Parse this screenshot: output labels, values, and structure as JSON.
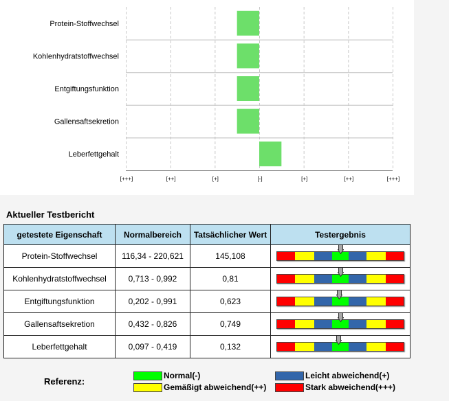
{
  "chart_data": {
    "type": "bar",
    "orientation": "horizontal",
    "categories": [
      "Protein-Stoffwechsel",
      "Kohlenhydratstoffwechsel",
      "Entgiftungsfunktion",
      "Gallensaftsekretion",
      "Leberfettgehalt"
    ],
    "values": [
      -0.5,
      -0.5,
      -0.5,
      -0.5,
      0.5
    ],
    "xlim": [
      -3,
      3
    ],
    "tick_labels": [
      "[+++]",
      "[++]",
      "[+]",
      "[-]",
      "[+]",
      "[++]",
      "[+++]"
    ],
    "bar_color": "#6ddf6a",
    "grid": true
  },
  "report": {
    "title": "Aktueller Testbericht",
    "headers": [
      "getestete Eigenschaft",
      "Normalbereich",
      "Tatsächlicher Wert",
      "Testergebnis"
    ],
    "rows": [
      {
        "name": "Protein-Stoffwechsel",
        "range": "116,34 - 220,621",
        "value": "145,108",
        "marker": 0.505
      },
      {
        "name": "Kohlenhydratstoffwechsel",
        "range": "0,713 - 0,992",
        "value": "0,81",
        "marker": 0.505
      },
      {
        "name": "Entgiftungsfunktion",
        "range": "0,202 - 0,991",
        "value": "0,623",
        "marker": 0.495
      },
      {
        "name": "Gallensaftsekretion",
        "range": "0,432 - 0,826",
        "value": "0,749",
        "marker": 0.505
      },
      {
        "name": "Leberfettgehalt",
        "range": "0,097 - 0,419",
        "value": "0,132",
        "marker": 0.49
      }
    ]
  },
  "gauge_colors": [
    "#ff0000",
    "#ffff00",
    "#3366aa",
    "#00ff00",
    "#3366aa",
    "#ffff00",
    "#ff0000"
  ],
  "legend": {
    "title": "Referenz:",
    "items": [
      {
        "label": "Normal(-)",
        "color": "#00ff00"
      },
      {
        "label": "Leicht abweichend(+)",
        "color": "#3366aa"
      },
      {
        "label": "Gemäßigt abweichend(++)",
        "color": "#ffff00"
      },
      {
        "label": "Stark abweichend(+++)",
        "color": "#ff0000"
      }
    ]
  }
}
